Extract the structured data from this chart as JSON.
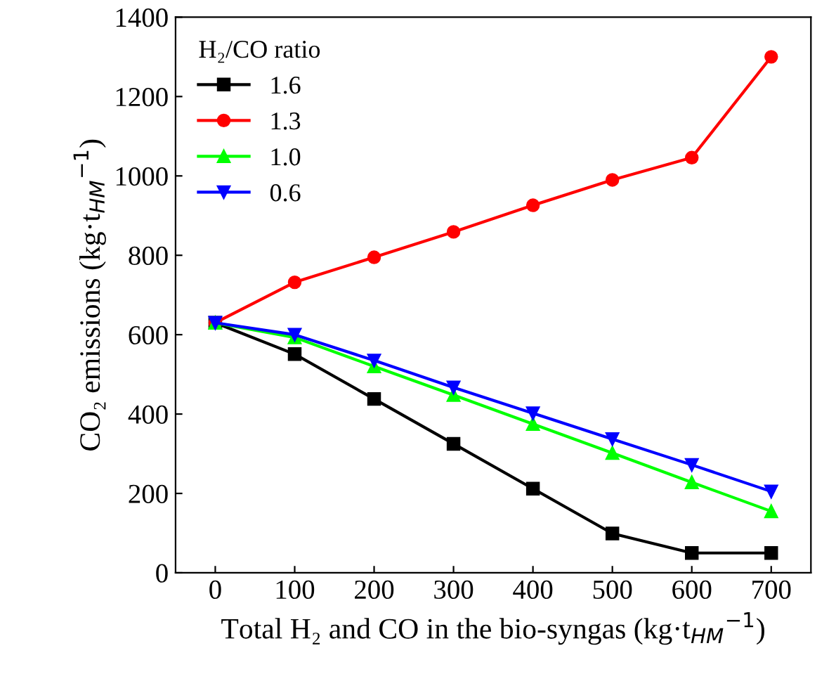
{
  "chart_data": {
    "type": "line",
    "xlabel": "Total H₂ and CO in the bio-syngas (kg·t$_{HM}$$^{−1}$)",
    "ylabel": "CO₂ emissions (kg·t$_{HM}$$^{−1}$)",
    "legend_title": "H₂/CO ratio",
    "legend": "top left",
    "grid": false,
    "x": [
      0,
      100,
      200,
      300,
      400,
      500,
      600,
      700
    ],
    "xlim": [
      -50,
      750
    ],
    "xticks": [
      0,
      100,
      200,
      300,
      400,
      500,
      600,
      700
    ],
    "ylim": [
      0,
      1400
    ],
    "yticks": [
      0,
      200,
      400,
      600,
      800,
      1000,
      1200,
      1400
    ],
    "series": [
      {
        "name": "1.6",
        "color": "#000000",
        "marker": "square",
        "values": [
          630,
          551,
          438,
          325,
          212,
          99,
          50,
          50
        ]
      },
      {
        "name": "1.3",
        "color": "#ff0000",
        "marker": "circle",
        "values": [
          630,
          732,
          795,
          859,
          926,
          990,
          1046,
          1300
        ]
      },
      {
        "name": "1.0",
        "color": "#00ff00",
        "marker": "triangle",
        "values": [
          630,
          593,
          520,
          448,
          375,
          302,
          228,
          155
        ]
      },
      {
        "name": "0.6",
        "color": "#0000ff",
        "marker": "triangle_down",
        "values": [
          630,
          600,
          535,
          467,
          402,
          337,
          272,
          205
        ]
      }
    ]
  }
}
